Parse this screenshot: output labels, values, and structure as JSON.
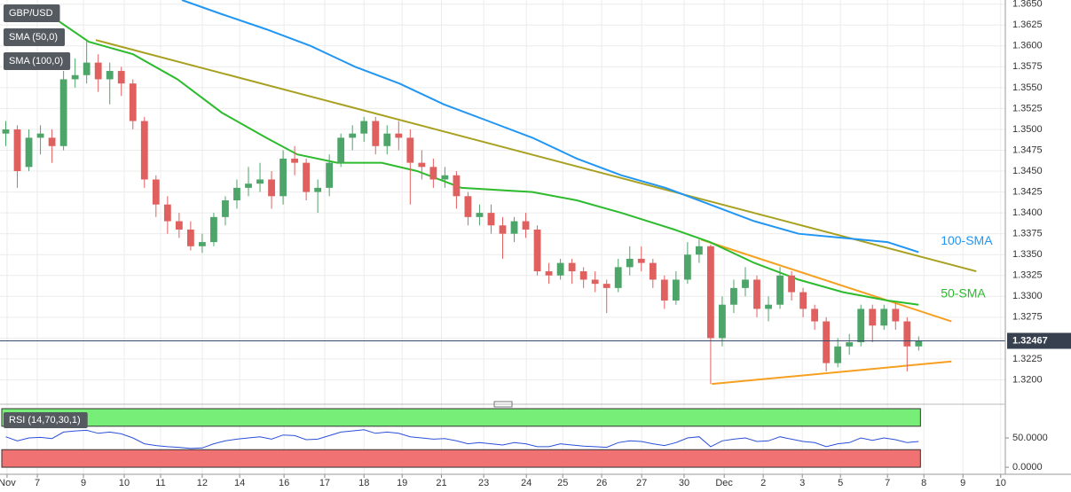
{
  "chart_data": [
    {
      "type": "candlestick",
      "title": "GBP/USD",
      "x": [
        0,
        1,
        2,
        3,
        4,
        5,
        6,
        7,
        8,
        9,
        10,
        11,
        12,
        13,
        14,
        15,
        16,
        17,
        18,
        19,
        20,
        21,
        22,
        23,
        24,
        25,
        26,
        27,
        28,
        29,
        30,
        31,
        32,
        33,
        34,
        35,
        36,
        37,
        38,
        39,
        40,
        41,
        42,
        43,
        44,
        45,
        46,
        47,
        48,
        49,
        50,
        51,
        52,
        53,
        54,
        55,
        56,
        57,
        58,
        59,
        60,
        61,
        62,
        63,
        64,
        65,
        66,
        67,
        68,
        69,
        70,
        71,
        72,
        73,
        74,
        75,
        76,
        77,
        78,
        79
      ],
      "open": [
        1.3495,
        1.35,
        1.3455,
        1.349,
        1.349,
        1.348,
        1.356,
        1.3565,
        1.358,
        1.356,
        1.357,
        1.3555,
        1.351,
        1.344,
        1.341,
        1.339,
        1.338,
        1.336,
        1.3365,
        1.3395,
        1.3415,
        1.343,
        1.3435,
        1.344,
        1.342,
        1.3465,
        1.346,
        1.3425,
        1.343,
        1.346,
        1.349,
        1.3495,
        1.351,
        1.348,
        1.3495,
        1.349,
        1.346,
        1.3455,
        1.344,
        1.3445,
        1.342,
        1.3395,
        1.34,
        1.3385,
        1.3375,
        1.339,
        1.338,
        1.333,
        1.3325,
        1.334,
        1.333,
        1.332,
        1.3315,
        1.331,
        1.3335,
        1.3345,
        1.334,
        1.332,
        1.3295,
        1.332,
        1.335,
        1.336,
        1.325,
        1.329,
        1.331,
        1.332,
        1.3285,
        1.329,
        1.3325,
        1.3305,
        1.3285,
        1.327,
        1.322,
        1.324,
        1.3245,
        1.3285,
        1.3265,
        1.3285,
        1.327,
        1.324
      ],
      "high": [
        1.351,
        1.3505,
        1.35,
        1.3505,
        1.35,
        1.357,
        1.3585,
        1.3607,
        1.359,
        1.358,
        1.3575,
        1.356,
        1.3515,
        1.3445,
        1.342,
        1.34,
        1.339,
        1.3375,
        1.34,
        1.342,
        1.344,
        1.3455,
        1.346,
        1.345,
        1.3475,
        1.348,
        1.3465,
        1.344,
        1.347,
        1.3495,
        1.3505,
        1.3515,
        1.3515,
        1.3505,
        1.351,
        1.35,
        1.3475,
        1.3465,
        1.3455,
        1.345,
        1.3425,
        1.341,
        1.341,
        1.3395,
        1.3395,
        1.34,
        1.3385,
        1.334,
        1.3345,
        1.3345,
        1.3335,
        1.333,
        1.332,
        1.3345,
        1.336,
        1.336,
        1.3345,
        1.3325,
        1.333,
        1.3365,
        1.3368,
        1.3362,
        1.33,
        1.332,
        1.3335,
        1.3325,
        1.33,
        1.3335,
        1.333,
        1.331,
        1.329,
        1.3275,
        1.325,
        1.3255,
        1.329,
        1.329,
        1.329,
        1.3292,
        1.3275,
        1.3252
      ],
      "low": [
        1.348,
        1.343,
        1.345,
        1.347,
        1.346,
        1.3475,
        1.355,
        1.3555,
        1.3545,
        1.353,
        1.354,
        1.35,
        1.343,
        1.3395,
        1.3375,
        1.337,
        1.3355,
        1.3352,
        1.336,
        1.3385,
        1.3405,
        1.342,
        1.3425,
        1.3405,
        1.341,
        1.3445,
        1.3415,
        1.34,
        1.342,
        1.3455,
        1.3475,
        1.3485,
        1.347,
        1.347,
        1.3475,
        1.341,
        1.344,
        1.343,
        1.343,
        1.3405,
        1.3385,
        1.3385,
        1.3375,
        1.3345,
        1.3365,
        1.337,
        1.3325,
        1.3315,
        1.332,
        1.3315,
        1.331,
        1.3305,
        1.328,
        1.3305,
        1.3325,
        1.333,
        1.331,
        1.3285,
        1.329,
        1.3315,
        1.334,
        1.3195,
        1.324,
        1.328,
        1.33,
        1.3275,
        1.327,
        1.3285,
        1.3295,
        1.3275,
        1.326,
        1.321,
        1.3215,
        1.323,
        1.324,
        1.3245,
        1.326,
        1.326,
        1.321,
        1.3235
      ],
      "close": [
        1.35,
        1.345,
        1.349,
        1.3495,
        1.348,
        1.356,
        1.3565,
        1.358,
        1.356,
        1.357,
        1.3555,
        1.351,
        1.344,
        1.341,
        1.339,
        1.338,
        1.336,
        1.3365,
        1.3395,
        1.3415,
        1.343,
        1.3435,
        1.344,
        1.342,
        1.3465,
        1.346,
        1.3425,
        1.343,
        1.346,
        1.349,
        1.3495,
        1.351,
        1.348,
        1.3495,
        1.349,
        1.346,
        1.3455,
        1.344,
        1.3445,
        1.342,
        1.3395,
        1.34,
        1.3385,
        1.3375,
        1.339,
        1.338,
        1.333,
        1.3325,
        1.334,
        1.333,
        1.332,
        1.3315,
        1.331,
        1.3335,
        1.3345,
        1.334,
        1.332,
        1.3295,
        1.332,
        1.335,
        1.336,
        1.325,
        1.329,
        1.331,
        1.332,
        1.3285,
        1.329,
        1.3325,
        1.3305,
        1.3285,
        1.327,
        1.322,
        1.324,
        1.3245,
        1.3285,
        1.3265,
        1.3285,
        1.327,
        1.324,
        1.3247
      ],
      "up_color": "#4ea56a",
      "down_color": "#e06060",
      "series": [
        {
          "name": "SMA (50,0)",
          "label": "50-SMA",
          "color": "#2dbb2d",
          "x": [
            2.96,
            7.18,
            11.02,
            14.86,
            18.7,
            22.54,
            25.23,
            28.69,
            32.53,
            35.6,
            39.44,
            45.58,
            49.42,
            53.26,
            57.87,
            60.94,
            64.78,
            68.62,
            72.46,
            76.3,
            78.99
          ],
          "values": [
            1.3645,
            1.3605,
            1.359,
            1.356,
            1.352,
            1.349,
            1.347,
            1.346,
            1.346,
            1.345,
            1.343,
            1.3425,
            1.3415,
            1.34,
            1.338,
            1.3365,
            1.334,
            1.332,
            1.3305,
            1.3295,
            1.329
          ]
        },
        {
          "name": "SMA (100,0)",
          "label": "100-SMA",
          "color": "#2196f3",
          "x": [
            15.24,
            18.7,
            22.54,
            26.38,
            30.22,
            34.06,
            37.9,
            41.74,
            45.58,
            49.42,
            53.26,
            57.1,
            60.94,
            64.78,
            68.62,
            72.46,
            76.3,
            78.99
          ],
          "values": [
            1.3655,
            1.3638,
            1.362,
            1.36,
            1.3575,
            1.3555,
            1.353,
            1.351,
            1.349,
            1.3465,
            1.3445,
            1.343,
            1.341,
            1.339,
            1.3375,
            1.337,
            1.3365,
            1.3353
          ]
        }
      ],
      "trendlines": [
        {
          "color": "#a8a020",
          "x": [
            7.79,
            83.99
          ],
          "values": [
            1.3607,
            1.333
          ]
        },
        {
          "color": "#f5a020",
          "x": [
            60.18,
            81.84
          ],
          "values": [
            1.3368,
            1.327
          ]
        },
        {
          "color": "#f5a020",
          "x": [
            61.1,
            81.84
          ],
          "values": [
            1.3195,
            1.3222
          ]
        }
      ],
      "last_price": {
        "value": 1.32467,
        "label": "1.32467"
      },
      "xlim": [
        -0.5,
        86.5
      ],
      "ylim": [
        1.3175,
        1.3655
      ],
      "yticks": [
        {
          "value": 1.32,
          "label": "1.3200"
        },
        {
          "value": 1.3225,
          "label": "1.3225"
        },
        {
          "value": 1.325,
          "label": "1.3250"
        },
        {
          "value": 1.3275,
          "label": "1.3275"
        },
        {
          "value": 1.33,
          "label": "1.3300"
        },
        {
          "value": 1.3325,
          "label": "1.3325"
        },
        {
          "value": 1.335,
          "label": "1.3350"
        },
        {
          "value": 1.3375,
          "label": "1.3375"
        },
        {
          "value": 1.34,
          "label": "1.3400"
        },
        {
          "value": 1.3425,
          "label": "1.3425"
        },
        {
          "value": 1.345,
          "label": "1.3450"
        },
        {
          "value": 1.3475,
          "label": "1.3475"
        },
        {
          "value": 1.35,
          "label": "1.3500"
        },
        {
          "value": 1.3525,
          "label": "1.3525"
        },
        {
          "value": 1.355,
          "label": "1.3550"
        },
        {
          "value": 1.3575,
          "label": "1.3575"
        },
        {
          "value": 1.36,
          "label": "1.3600"
        },
        {
          "value": 1.3625,
          "label": "1.3625"
        },
        {
          "value": 1.365,
          "label": "1.3650"
        }
      ],
      "xticks": [
        {
          "value": 0.11,
          "label": "Nov"
        },
        {
          "value": 2.73,
          "label": "7"
        },
        {
          "value": 6.72,
          "label": "9"
        },
        {
          "value": 10.25,
          "label": "10"
        },
        {
          "value": 13.4,
          "label": "11"
        },
        {
          "value": 17.0,
          "label": "12"
        },
        {
          "value": 20.24,
          "label": "14"
        },
        {
          "value": 24.08,
          "label": "16"
        },
        {
          "value": 27.6,
          "label": "17"
        },
        {
          "value": 31.0,
          "label": "18"
        },
        {
          "value": 34.3,
          "label": "19"
        },
        {
          "value": 37.7,
          "label": "21"
        },
        {
          "value": 41.36,
          "label": "23"
        },
        {
          "value": 45.05,
          "label": "24"
        },
        {
          "value": 48.2,
          "label": "25"
        },
        {
          "value": 51.57,
          "label": "26"
        },
        {
          "value": 55.03,
          "label": "27"
        },
        {
          "value": 58.7,
          "label": "30"
        },
        {
          "value": 62.17,
          "label": "Dec"
        },
        {
          "value": 65.55,
          "label": "2"
        },
        {
          "value": 68.93,
          "label": "3"
        },
        {
          "value": 72.23,
          "label": "5"
        },
        {
          "value": 76.3,
          "label": "7"
        },
        {
          "value": 79.45,
          "label": "8"
        },
        {
          "value": 82.83,
          "label": "9"
        },
        {
          "value": 86.1,
          "label": "10"
        }
      ],
      "grid": true
    },
    {
      "type": "line",
      "title": "RSI (14,70,30,1)",
      "series": [
        {
          "color": "#2b50d8",
          "x": [
            0,
            1,
            2,
            3,
            4,
            5,
            6,
            7,
            8,
            9,
            10,
            11,
            12,
            13,
            14,
            15,
            16,
            17,
            18,
            19,
            20,
            21,
            22,
            23,
            24,
            25,
            26,
            27,
            28,
            29,
            30,
            31,
            32,
            33,
            34,
            35,
            36,
            37,
            38,
            39,
            40,
            41,
            42,
            43,
            44,
            45,
            46,
            47,
            48,
            49,
            50,
            51,
            52,
            53,
            54,
            55,
            56,
            57,
            58,
            59,
            60,
            61,
            62,
            63,
            64,
            65,
            66,
            67,
            68,
            69,
            70,
            71,
            72,
            73,
            74,
            75,
            76,
            77,
            78,
            79
          ],
          "values": [
            52,
            45,
            50,
            51,
            49,
            60,
            62,
            63,
            58,
            60,
            57,
            50,
            40,
            37,
            35,
            34,
            32,
            33,
            40,
            45,
            48,
            50,
            52,
            48,
            55,
            54,
            47,
            48,
            54,
            60,
            62,
            64,
            58,
            60,
            58,
            52,
            50,
            48,
            49,
            45,
            40,
            42,
            40,
            38,
            42,
            40,
            35,
            35,
            40,
            38,
            36,
            35,
            34,
            42,
            45,
            44,
            40,
            37,
            42,
            50,
            52,
            35,
            45,
            48,
            50,
            44,
            45,
            52,
            48,
            44,
            42,
            35,
            40,
            42,
            50,
            46,
            50,
            47,
            42,
            44
          ]
        }
      ],
      "overbought": 70,
      "oversold": 30,
      "overbought_color": "#77ee77",
      "oversold_color": "#f07272",
      "ylim": [
        -12,
        100
      ],
      "yticks": [
        {
          "value": 0,
          "label": "0.0000"
        },
        {
          "value": 50,
          "label": "50.0000"
        }
      ]
    }
  ]
}
